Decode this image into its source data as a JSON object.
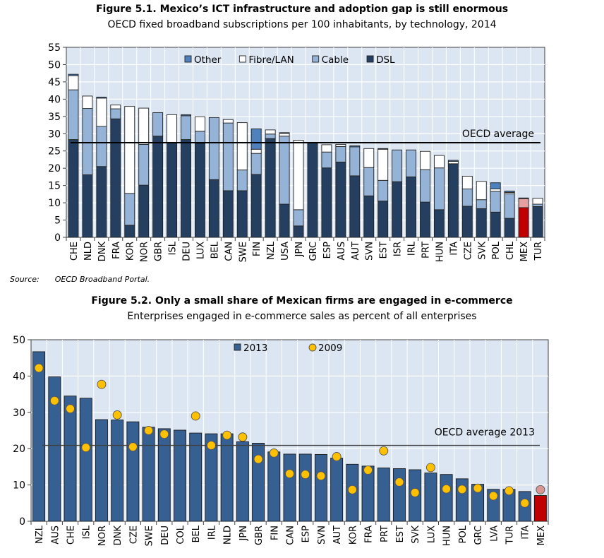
{
  "chart_data": [
    {
      "type": "bar",
      "stacked": true,
      "title": "Figure 5.1. Mexico’s ICT infrastructure and adoption gap is still enormous",
      "subtitle": "OECD fixed broadband subscriptions per 100 inhabitants, by technology, 2014",
      "source_label": "Source:",
      "source_text": "OECD Broadband Portal.",
      "ylim": [
        0,
        55
      ],
      "yticks": [
        0,
        5,
        10,
        15,
        20,
        25,
        30,
        35,
        40,
        45,
        50,
        55
      ],
      "grid": true,
      "legend_position": "top-right",
      "categories": [
        "CHE",
        "NLD",
        "DNK",
        "FRA",
        "KOR",
        "NOR",
        "GBR",
        "ISL",
        "DEU",
        "LUX",
        "BEL",
        "CAN",
        "SWE",
        "FIN",
        "NZL",
        "USA",
        "JPN",
        "GRC",
        "ESP",
        "AUS",
        "AUT",
        "SVN",
        "EST",
        "ISR",
        "IRL",
        "PRT",
        "HUN",
        "ITA",
        "CZE",
        "SVK",
        "POL",
        "CHL",
        "MEX",
        "TUR"
      ],
      "series": [
        {
          "name": "DSL",
          "color": "#243f60",
          "values": [
            28.3,
            18.1,
            20.5,
            34.3,
            3.5,
            15.1,
            29.3,
            27.3,
            28.3,
            27.2,
            16.7,
            13.5,
            13.5,
            18.2,
            28.6,
            9.6,
            3.3,
            27.3,
            20.1,
            21.8,
            17.8,
            12.0,
            10.5,
            16.1,
            17.5,
            10.2,
            8.0,
            21.3,
            9.0,
            8.3,
            7.3,
            5.5,
            8.6,
            8.9
          ]
        },
        {
          "name": "Cable",
          "color": "#95b3d7",
          "values": [
            14.4,
            19.2,
            11.6,
            2.9,
            9.2,
            11.8,
            6.8,
            0,
            6.9,
            3.5,
            18.0,
            19.6,
            6.0,
            6.1,
            1.3,
            19.7,
            4.7,
            0,
            4.6,
            4.5,
            8.4,
            8.2,
            6.0,
            9.2,
            7.8,
            9.4,
            12.1,
            0,
            5.0,
            2.6,
            6.0,
            7.1,
            2.6,
            0.7
          ]
        },
        {
          "name": "Fibre/LAN",
          "color": "#ffffff",
          "values": [
            4.1,
            3.6,
            8.2,
            1.1,
            25.2,
            10.5,
            0,
            8.2,
            0,
            4.2,
            0,
            1.0,
            13.7,
            1.2,
            1.2,
            0.8,
            20.1,
            0,
            2.1,
            0.6,
            0,
            5.5,
            9.0,
            0,
            0,
            5.3,
            3.6,
            0.7,
            3.7,
            5.3,
            0.7,
            0.4,
            0,
            1.7
          ]
        },
        {
          "name": "Other",
          "color": "#4f81bd",
          "values": [
            0.4,
            0,
            0.3,
            0,
            0,
            0,
            0,
            0,
            0.3,
            0,
            0,
            0,
            0,
            5.9,
            0,
            0.2,
            0,
            0,
            0,
            0,
            0.3,
            0,
            0.2,
            0,
            0,
            0,
            0,
            0.3,
            0,
            0,
            1.8,
            0.4,
            0.2,
            0
          ]
        }
      ],
      "legend_order": [
        "Other",
        "Fibre/LAN",
        "Cable",
        "DSL"
      ],
      "highlight": {
        "category": "MEX",
        "colors": {
          "DSL": "#c00000",
          "Cable": "#e6a0a0"
        }
      },
      "reference_line": {
        "label": "OECD average",
        "value": 27.4
      }
    },
    {
      "type": "bar",
      "title": "Figure 5.2. Only a small share of Mexican firms are engaged in e-commerce",
      "subtitle": "Enterprises engaged in e-commerce sales as percent of all enterprises",
      "ylim": [
        0,
        50
      ],
      "yticks": [
        0,
        10,
        20,
        30,
        40,
        50
      ],
      "grid": true,
      "legend_position": "top",
      "categories": [
        "NZL",
        "AUS",
        "CHE",
        "ISL",
        "NOR",
        "DNK",
        "CZE",
        "SWE",
        "DEU",
        "COL",
        "BEL",
        "IRL",
        "NLD",
        "JPN",
        "GBR",
        "FIN",
        "CAN",
        "ESP",
        "SVN",
        "AUT",
        "KOR",
        "FRA",
        "PRT",
        "EST",
        "SVK",
        "LUX",
        "HUN",
        "POL",
        "GRC",
        "LVA",
        "TUR",
        "ITA",
        "MEX"
      ],
      "series": [
        {
          "name": "2013",
          "type": "bar",
          "color": "#376092",
          "values": [
            46.7,
            39.8,
            34.5,
            33.9,
            28.0,
            27.9,
            27.4,
            25.9,
            25.5,
            25.1,
            24.3,
            24.1,
            24.1,
            21.9,
            21.5,
            19.1,
            18.5,
            18.5,
            18.4,
            17.4,
            15.7,
            15.2,
            14.7,
            14.5,
            14.2,
            13.3,
            12.9,
            11.7,
            10.2,
            8.8,
            8.8,
            8.2,
            7.1
          ]
        },
        {
          "name": "2009",
          "type": "scatter",
          "color": "#ffc000",
          "values": [
            42.2,
            33.2,
            31.0,
            20.3,
            37.7,
            29.3,
            20.5,
            25.0,
            24.0,
            null,
            29.0,
            20.9,
            23.7,
            23.2,
            17.1,
            18.8,
            13.1,
            12.9,
            12.5,
            17.8,
            8.7,
            14.1,
            19.4,
            10.8,
            7.9,
            14.8,
            8.9,
            8.8,
            9.1,
            7.0,
            8.4,
            5.0,
            8.7
          ]
        }
      ],
      "highlight": {
        "category": "MEX",
        "colors": {
          "2013": "#c00000",
          "2009": "#d99694"
        }
      },
      "reference_line": {
        "label": "OECD average 2013",
        "value": 20.9
      }
    }
  ]
}
